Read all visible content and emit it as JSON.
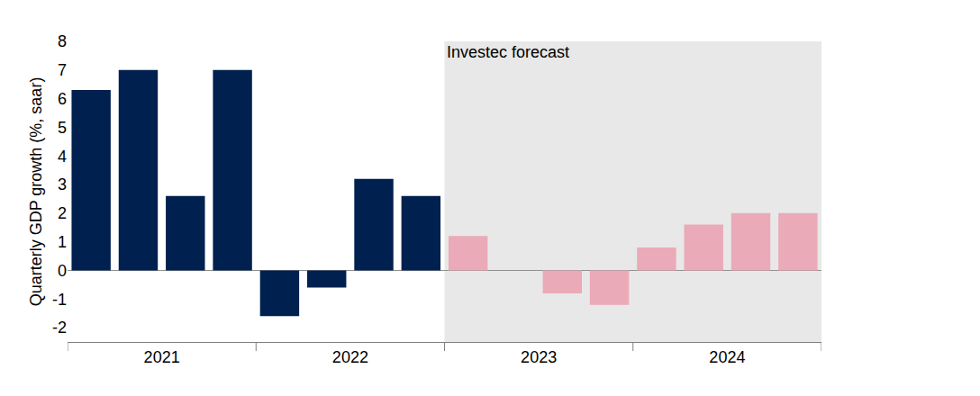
{
  "chart_data": {
    "type": "bar",
    "y_label": "Quarterly GDP growth (%, saar)",
    "categories": [
      "2021",
      null,
      null,
      null,
      "2022",
      null,
      null,
      null,
      "2023",
      null,
      null,
      null,
      "2024",
      null,
      null,
      null
    ],
    "values": [
      6.3,
      7.0,
      2.6,
      7.0,
      -1.6,
      -0.6,
      3.2,
      2.6,
      1.2,
      0,
      -0.8,
      -1.2,
      0.8,
      1.6,
      2.0,
      2.0
    ],
    "colors": [
      "#00204f",
      "#00204f",
      "#00204f",
      "#00204f",
      "#00204f",
      "#00204f",
      "#00204f",
      "#00204f",
      "#eaaab8",
      "#eaaab8",
      "#eaaab8",
      "#eaaab8",
      "#eaaab8",
      "#eaaab8",
      "#eaaab8",
      "#eaaab8"
    ],
    "ylim": [
      -2.5,
      8
    ],
    "yticks": [
      -2,
      -1,
      0,
      1,
      2,
      3,
      4,
      5,
      6,
      7,
      8
    ],
    "grid": false,
    "annotations": [
      {
        "text": "Investec forecast",
        "x": "2023"
      }
    ]
  }
}
